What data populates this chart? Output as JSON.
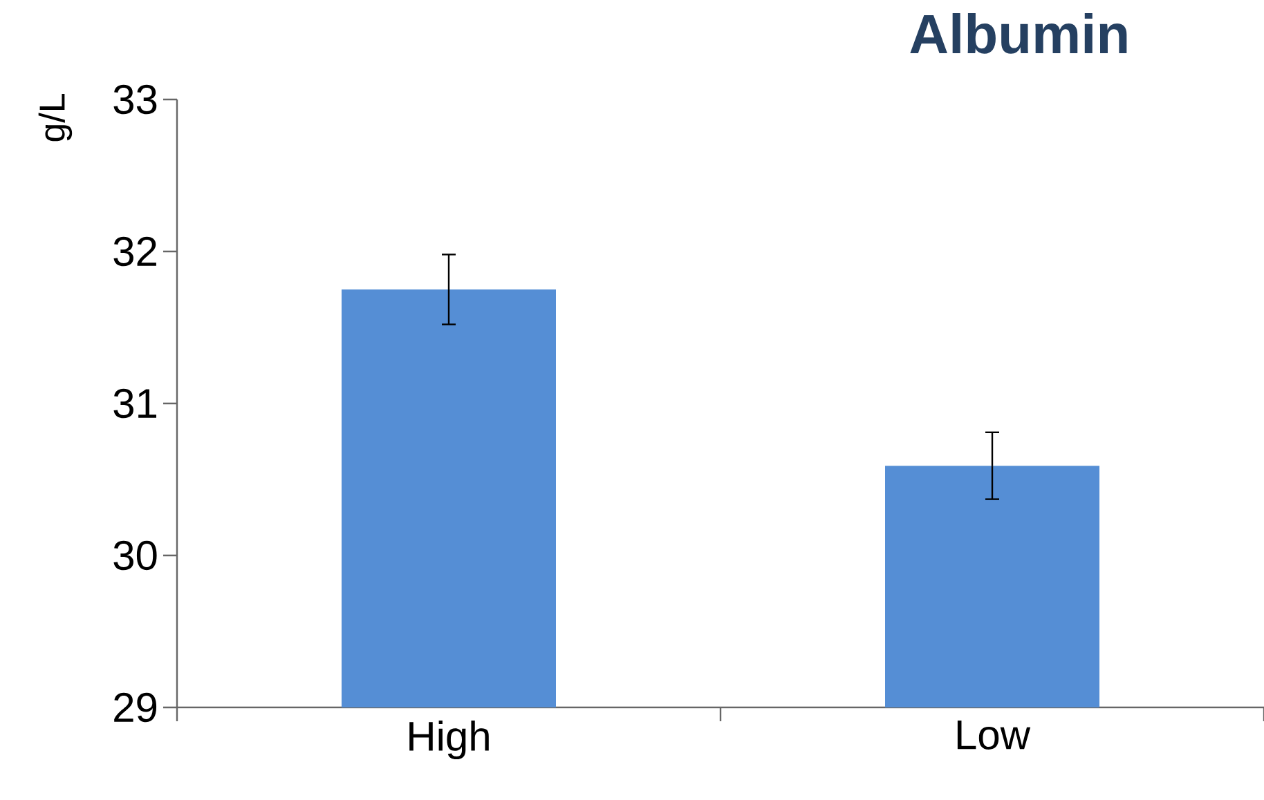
{
  "chart_data": {
    "type": "bar",
    "title": "Albumin",
    "ylabel": "g/L",
    "categories": [
      "High",
      "Low"
    ],
    "values": [
      31.75,
      30.59
    ],
    "errors": [
      0.23,
      0.22
    ],
    "color": "#558ed5",
    "ylim": [
      29,
      33
    ],
    "yticks": [
      29,
      30,
      31,
      32,
      33
    ],
    "grid": false
  }
}
